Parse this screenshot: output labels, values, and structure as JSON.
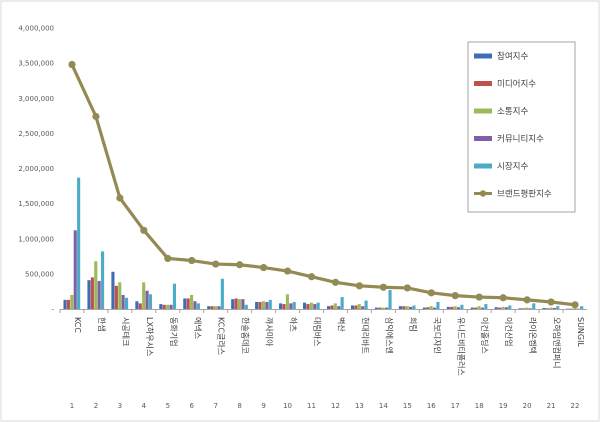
{
  "chart_data": {
    "type": "bar",
    "ylim": [
      0,
      4000000
    ],
    "yticks": [
      "-",
      "500,000",
      "1,000,000",
      "1,500,000",
      "2,000,000",
      "2,500,000",
      "3,000,000",
      "3,500,000",
      "4,000,000"
    ],
    "categories": [
      "KCC",
      "한샘",
      "시공테크",
      "LX하우시스",
      "동화기업",
      "에넥스",
      "KCC글라스",
      "한솔홈데코",
      "까사미아",
      "하츠",
      "대림바스",
      "벽산",
      "현대리바트",
      "삼익에스엔",
      "희림",
      "국보디자인",
      "유니드비티플러스",
      "이건홀딩스",
      "이건산업",
      "라이온켐텍",
      "오하임앤컴퍼니",
      "SUNGIL"
    ],
    "index_labels": [
      "1",
      "2",
      "3",
      "4",
      "5",
      "6",
      "7",
      "8",
      "9",
      "10",
      "11",
      "12",
      "13",
      "14",
      "15",
      "16",
      "17",
      "18",
      "19",
      "20",
      "21",
      "22"
    ],
    "series": [
      {
        "name": "참여지수",
        "color": "#3e6db2",
        "values": [
          130000,
          410000,
          530000,
          110000,
          70000,
          150000,
          40000,
          140000,
          100000,
          80000,
          90000,
          40000,
          50000,
          20000,
          40000,
          20000,
          30000,
          20000,
          25000,
          10000,
          15000,
          5000
        ]
      },
      {
        "name": "미디어지수",
        "color": "#c0504d",
        "values": [
          130000,
          450000,
          330000,
          80000,
          60000,
          150000,
          40000,
          150000,
          100000,
          70000,
          70000,
          50000,
          50000,
          20000,
          40000,
          25000,
          30000,
          20000,
          20000,
          10000,
          10000,
          5000
        ]
      },
      {
        "name": "소통지수",
        "color": "#9bbb59",
        "values": [
          200000,
          680000,
          380000,
          380000,
          60000,
          200000,
          40000,
          140000,
          110000,
          210000,
          90000,
          80000,
          70000,
          20000,
          40000,
          40000,
          40000,
          40000,
          30000,
          20000,
          20000,
          10000
        ]
      },
      {
        "name": "커뮤니티지수",
        "color": "#7f5fa8",
        "values": [
          1120000,
          400000,
          200000,
          260000,
          60000,
          110000,
          40000,
          140000,
          100000,
          80000,
          70000,
          40000,
          40000,
          20000,
          30000,
          20000,
          25000,
          20000,
          25000,
          10000,
          15000,
          5000
        ]
      },
      {
        "name": "시장지수",
        "color": "#4bacc6",
        "values": [
          1870000,
          820000,
          160000,
          210000,
          360000,
          80000,
          430000,
          60000,
          130000,
          100000,
          90000,
          170000,
          120000,
          270000,
          50000,
          100000,
          60000,
          70000,
          50000,
          80000,
          40000,
          40000
        ]
      }
    ],
    "line": {
      "name": "브랜드평판지수",
      "color": "#948a54",
      "values": [
        3480000,
        2740000,
        1580000,
        1120000,
        720000,
        690000,
        640000,
        630000,
        590000,
        540000,
        460000,
        380000,
        330000,
        310000,
        300000,
        230000,
        190000,
        170000,
        160000,
        130000,
        100000,
        60000
      ]
    },
    "legend_position": "top-right",
    "grid": false
  }
}
